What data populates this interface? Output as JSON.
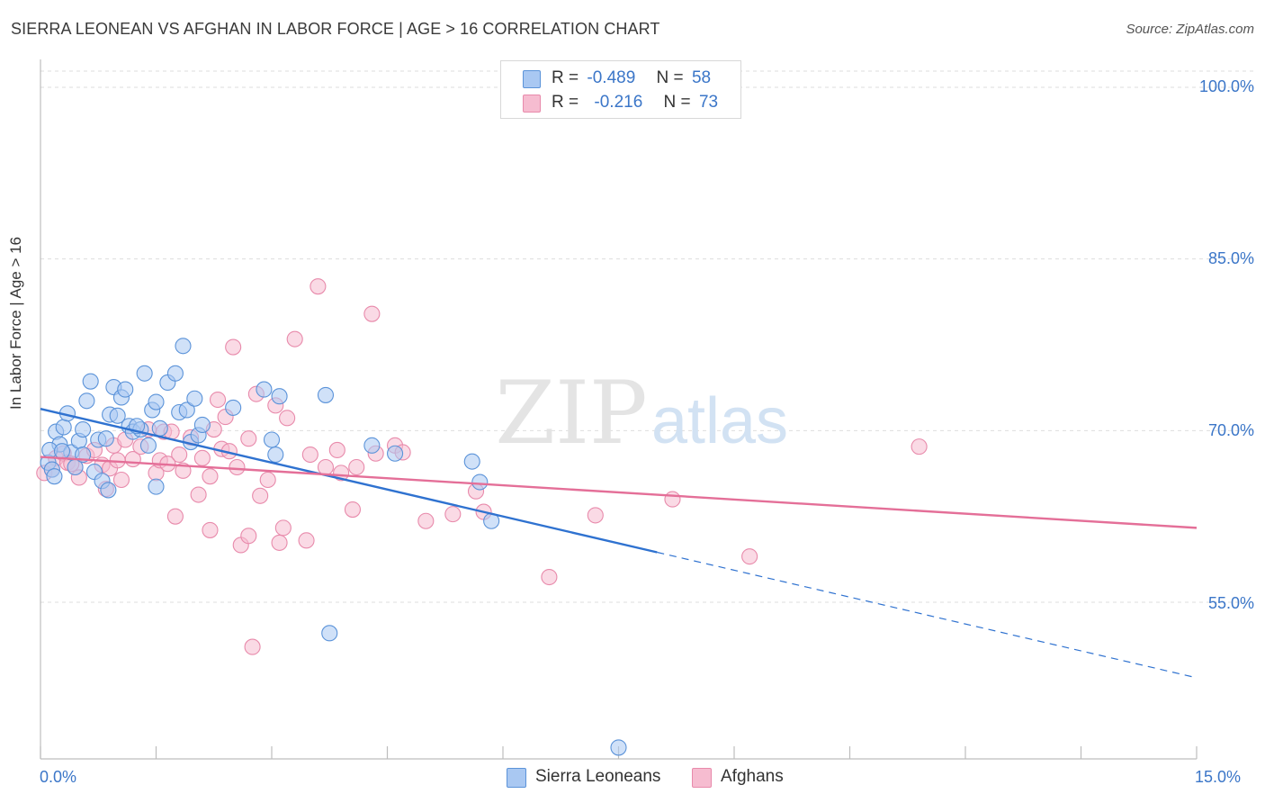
{
  "title": "SIERRA LEONEAN VS AFGHAN IN LABOR FORCE | AGE > 16 CORRELATION CHART",
  "source": "Source: ZipAtlas.com",
  "watermark": {
    "zip": "ZIP",
    "atlas": "atlas"
  },
  "legend": {
    "row1": {
      "r_label": "R =",
      "r_value": "-0.489",
      "n_label": "N =",
      "n_value": "58"
    },
    "row2": {
      "r_label": "R =",
      "r_value": "-0.216",
      "n_label": "N =",
      "n_value": "73"
    }
  },
  "bottom_legend": {
    "series1": "Sierra Leoneans",
    "series2": "Afghans"
  },
  "colors": {
    "blue_fill": "#a9c8f2",
    "blue_stroke": "#5b93d9",
    "blue_line": "#2f72d0",
    "pink_fill": "#f6bcd0",
    "pink_stroke": "#e88aab",
    "pink_line": "#e46f98",
    "tick_text": "#3b76c8",
    "grid": "#dddddd"
  },
  "chart_data": {
    "type": "scatter",
    "title": "SIERRA LEONEAN VS AFGHAN IN LABOR FORCE | AGE > 16 CORRELATION CHART",
    "xlabel": "",
    "ylabel": "In Labor Force | Age > 16",
    "xlim": [
      0.0,
      15.0
    ],
    "ylim": [
      40.0,
      102.0
    ],
    "x_tick_labels": [
      "0.0%",
      "15.0%"
    ],
    "y_ticks": [
      55.0,
      70.0,
      85.0,
      100.0
    ],
    "y_tick_labels": [
      "55.0%",
      "70.0%",
      "85.0%",
      "100.0%"
    ],
    "grid": true,
    "legend_position": "top-center",
    "series": [
      {
        "name": "Sierra Leoneans",
        "r": -0.489,
        "n": 58,
        "trend": {
          "x_start": 0.0,
          "y_start": 71.9,
          "x_solid_end": 8.0,
          "x_end": 15.0,
          "y_end": 48.4
        },
        "points": [
          [
            0.1,
            67.2
          ],
          [
            0.15,
            66.6
          ],
          [
            0.2,
            69.9
          ],
          [
            0.25,
            68.8
          ],
          [
            0.3,
            70.3
          ],
          [
            0.35,
            71.5
          ],
          [
            0.4,
            68.1
          ],
          [
            0.45,
            66.8
          ],
          [
            0.5,
            69.1
          ],
          [
            0.55,
            67.9
          ],
          [
            0.6,
            72.6
          ],
          [
            0.65,
            74.3
          ],
          [
            0.7,
            66.4
          ],
          [
            0.75,
            69.2
          ],
          [
            0.8,
            65.6
          ],
          [
            0.85,
            69.3
          ],
          [
            0.9,
            71.4
          ],
          [
            0.95,
            73.8
          ],
          [
            0.88,
            64.8
          ],
          [
            1.0,
            71.3
          ],
          [
            1.05,
            72.9
          ],
          [
            1.1,
            73.6
          ],
          [
            1.15,
            70.4
          ],
          [
            1.2,
            69.9
          ],
          [
            1.3,
            70.1
          ],
          [
            1.35,
            75.0
          ],
          [
            1.4,
            68.7
          ],
          [
            1.45,
            71.8
          ],
          [
            1.5,
            72.5
          ],
          [
            1.5,
            65.1
          ],
          [
            1.55,
            70.2
          ],
          [
            1.65,
            74.2
          ],
          [
            1.75,
            75.0
          ],
          [
            1.8,
            71.6
          ],
          [
            1.85,
            77.4
          ],
          [
            1.9,
            71.8
          ],
          [
            1.95,
            69.0
          ],
          [
            2.0,
            72.8
          ],
          [
            2.05,
            69.6
          ],
          [
            2.1,
            70.5
          ],
          [
            2.5,
            72.0
          ],
          [
            2.9,
            73.6
          ],
          [
            3.0,
            69.2
          ],
          [
            3.05,
            67.9
          ],
          [
            3.1,
            73.0
          ],
          [
            3.7,
            73.1
          ],
          [
            4.3,
            68.7
          ],
          [
            4.6,
            68.0
          ],
          [
            5.6,
            67.3
          ],
          [
            5.7,
            65.5
          ],
          [
            5.85,
            62.1
          ],
          [
            3.75,
            52.3
          ],
          [
            7.5,
            42.3
          ],
          [
            0.12,
            68.3
          ],
          [
            0.28,
            68.2
          ],
          [
            0.55,
            70.1
          ],
          [
            1.25,
            70.4
          ],
          [
            0.18,
            66.0
          ]
        ]
      },
      {
        "name": "Afghans",
        "r": -0.216,
        "n": 73,
        "trend": {
          "x_start": 0.0,
          "y_start": 67.7,
          "x_end": 15.0,
          "y_end": 61.5
        },
        "points": [
          [
            0.05,
            66.3
          ],
          [
            0.2,
            67.6
          ],
          [
            0.3,
            68.0
          ],
          [
            0.35,
            67.2
          ],
          [
            0.45,
            66.8
          ],
          [
            0.5,
            65.9
          ],
          [
            0.6,
            67.8
          ],
          [
            0.7,
            68.3
          ],
          [
            0.8,
            67.0
          ],
          [
            0.85,
            64.9
          ],
          [
            0.9,
            66.7
          ],
          [
            0.95,
            68.7
          ],
          [
            1.0,
            67.4
          ],
          [
            1.05,
            65.7
          ],
          [
            1.1,
            69.2
          ],
          [
            1.2,
            67.5
          ],
          [
            1.3,
            68.6
          ],
          [
            1.4,
            70.1
          ],
          [
            1.5,
            66.3
          ],
          [
            1.55,
            67.4
          ],
          [
            1.6,
            69.9
          ],
          [
            1.7,
            69.9
          ],
          [
            1.75,
            62.5
          ],
          [
            1.8,
            67.9
          ],
          [
            1.85,
            66.5
          ],
          [
            1.95,
            69.4
          ],
          [
            2.05,
            64.4
          ],
          [
            2.1,
            67.6
          ],
          [
            2.2,
            61.3
          ],
          [
            2.25,
            70.1
          ],
          [
            2.3,
            72.7
          ],
          [
            2.35,
            68.4
          ],
          [
            2.4,
            71.2
          ],
          [
            2.45,
            68.2
          ],
          [
            2.5,
            77.3
          ],
          [
            2.55,
            66.8
          ],
          [
            2.6,
            60.0
          ],
          [
            2.7,
            69.3
          ],
          [
            2.7,
            60.8
          ],
          [
            2.8,
            73.2
          ],
          [
            2.85,
            64.3
          ],
          [
            2.95,
            65.7
          ],
          [
            3.05,
            72.2
          ],
          [
            3.1,
            60.2
          ],
          [
            3.15,
            61.5
          ],
          [
            3.2,
            71.1
          ],
          [
            3.3,
            78.0
          ],
          [
            3.45,
            60.4
          ],
          [
            3.5,
            67.9
          ],
          [
            3.6,
            82.6
          ],
          [
            3.7,
            66.8
          ],
          [
            3.85,
            68.3
          ],
          [
            3.9,
            66.3
          ],
          [
            4.05,
            63.1
          ],
          [
            4.1,
            66.8
          ],
          [
            4.3,
            80.2
          ],
          [
            4.35,
            68.0
          ],
          [
            4.6,
            68.7
          ],
          [
            4.7,
            68.1
          ],
          [
            5.0,
            62.1
          ],
          [
            5.35,
            62.7
          ],
          [
            5.65,
            64.7
          ],
          [
            5.75,
            62.9
          ],
          [
            6.6,
            57.2
          ],
          [
            7.2,
            62.6
          ],
          [
            8.2,
            64.0
          ],
          [
            9.2,
            59.0
          ],
          [
            11.4,
            68.6
          ],
          [
            2.75,
            51.1
          ],
          [
            1.65,
            67.1
          ],
          [
            0.4,
            67.1
          ],
          [
            0.15,
            66.6
          ],
          [
            2.2,
            66.0
          ]
        ]
      }
    ]
  }
}
